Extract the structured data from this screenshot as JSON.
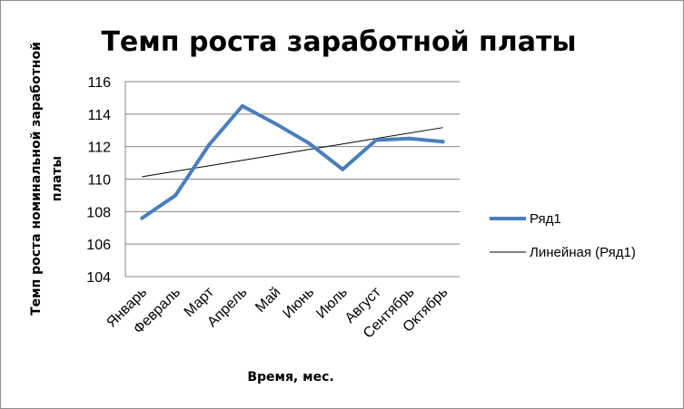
{
  "chart_data": {
    "type": "line",
    "title": "Темп роста заработной платы",
    "xlabel": "Время, мес.",
    "ylabel_lines": [
      "Темп роста номинальной заработной",
      "платы"
    ],
    "categories": [
      "Январь",
      "Февраль",
      "Март",
      "Апрель",
      "Май",
      "Июнь",
      "Июль",
      "Август",
      "Сентябрь",
      "Октябрь"
    ],
    "series": [
      {
        "name": "Ряд1",
        "color": "#4a7ebb",
        "values": [
          107.6,
          109.0,
          112.1,
          114.5,
          113.4,
          112.2,
          110.6,
          112.4,
          112.5,
          112.3
        ]
      }
    ],
    "trendline": {
      "name": "Линейная (Ряд1)",
      "type": "linear",
      "color": "#000000"
    },
    "ylim": [
      104,
      116
    ],
    "yticks": [
      "104",
      "106",
      "108",
      "110",
      "112",
      "114",
      "116"
    ],
    "grid": "horizontal",
    "legend": "right"
  }
}
